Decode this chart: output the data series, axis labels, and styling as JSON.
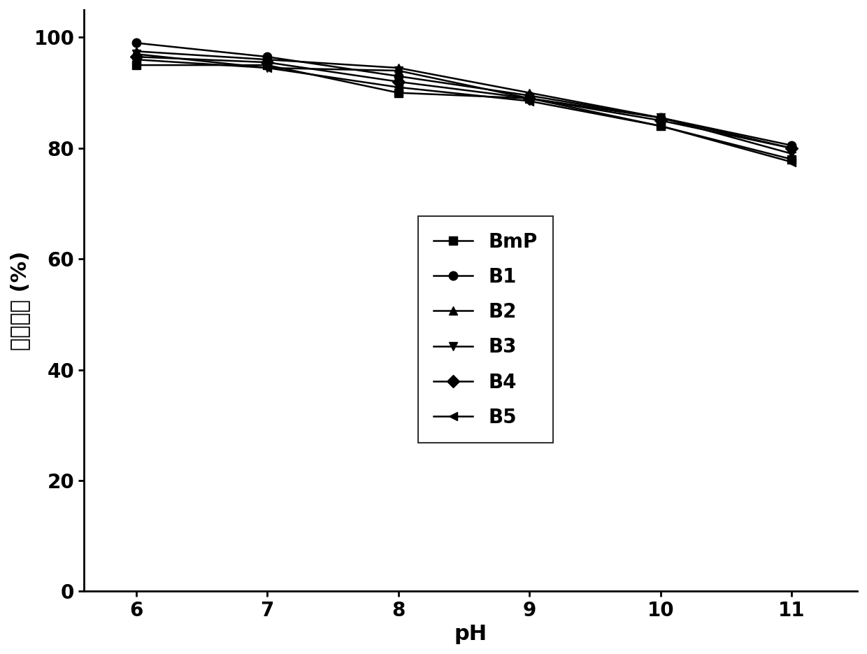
{
  "x": [
    6,
    7,
    8,
    9,
    10,
    11
  ],
  "series": {
    "BmP": [
      95.0,
      95.0,
      90.0,
      89.0,
      84.0,
      78.0
    ],
    "B1": [
      99.0,
      96.5,
      93.0,
      89.5,
      85.5,
      80.5
    ],
    "B2": [
      97.5,
      96.0,
      94.5,
      90.0,
      85.5,
      80.0
    ],
    "B3": [
      97.0,
      94.5,
      94.0,
      89.0,
      85.5,
      79.0
    ],
    "B4": [
      96.5,
      95.5,
      92.0,
      89.0,
      85.0,
      80.0
    ],
    "B5": [
      96.0,
      94.5,
      91.0,
      88.5,
      84.0,
      77.5
    ]
  },
  "markers": {
    "BmP": "s",
    "B1": "o",
    "B2": "^",
    "B3": "v",
    "B4": "D",
    "B5": "<"
  },
  "ylabel": "剩余酶活 (%)",
  "xlabel": "pH",
  "ylim": [
    0,
    105
  ],
  "yticks": [
    0,
    20,
    40,
    60,
    80,
    100
  ],
  "xticks": [
    6,
    7,
    8,
    9,
    10,
    11
  ],
  "line_color": "#000000",
  "linewidth": 1.8,
  "markersize": 9,
  "fontsize_label": 22,
  "fontsize_tick": 20,
  "fontsize_legend": 20,
  "figure_bg": "#ffffff"
}
